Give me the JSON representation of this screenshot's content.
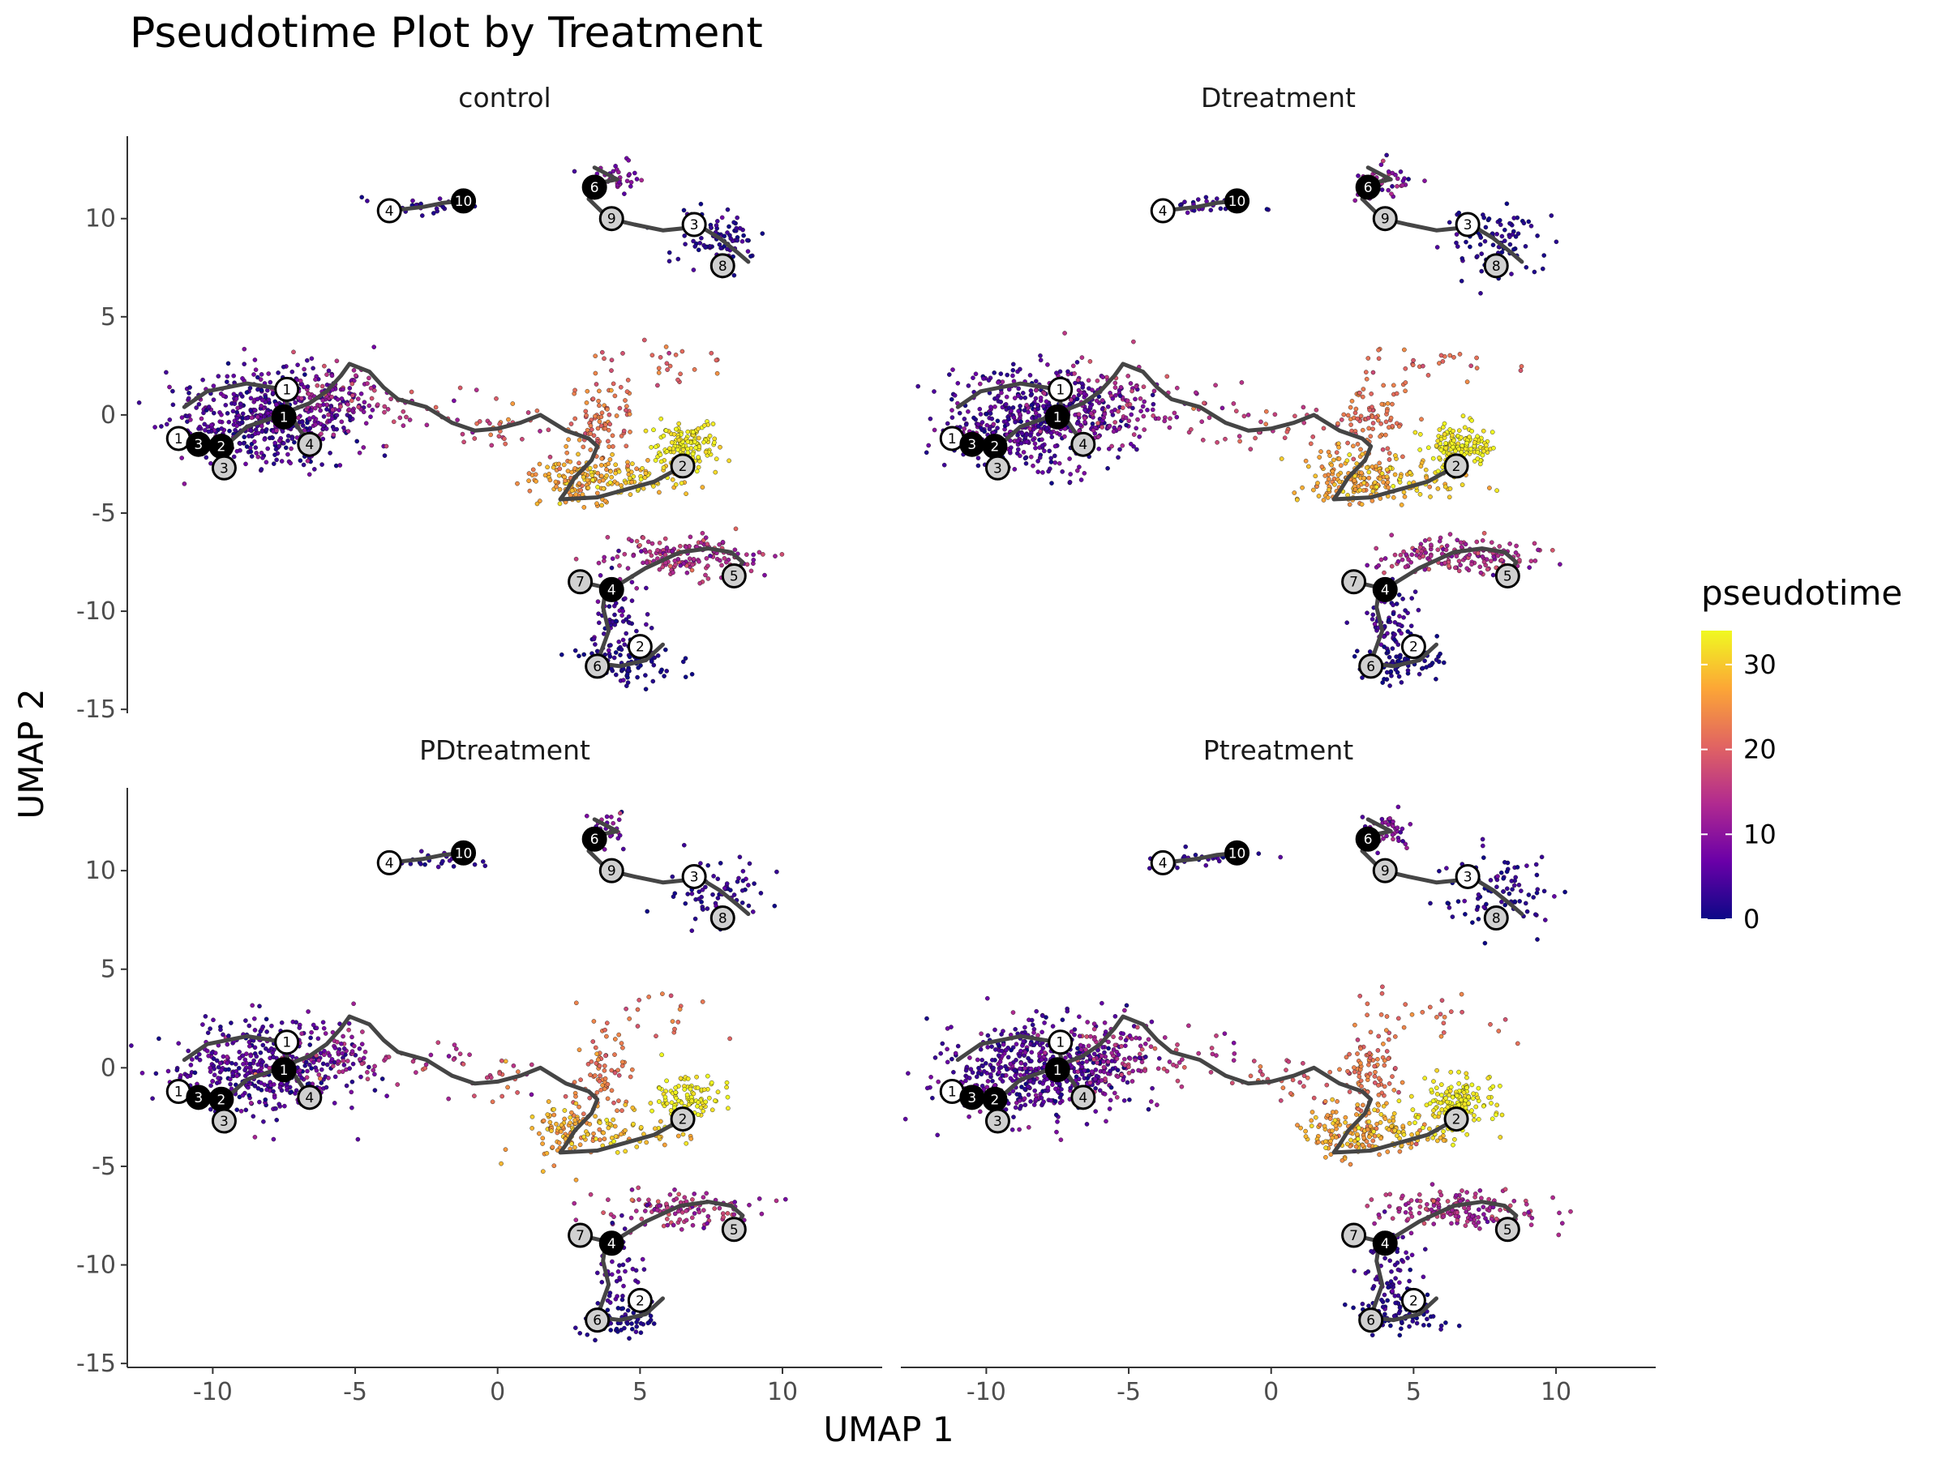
{
  "chart_data": {
    "type": "scatter",
    "title": "Pseudotime Plot by Treatment",
    "xlabel": "UMAP 1",
    "ylabel": "UMAP 2",
    "xlim": [
      -13,
      13.5
    ],
    "ylim": [
      -15.2,
      14.2
    ],
    "x_ticks": [
      -10,
      -5,
      0,
      5,
      10
    ],
    "x_tick_labels": [
      "-10",
      "-5",
      "0",
      "5",
      "10"
    ],
    "y_ticks": [
      -15,
      -10,
      -5,
      0,
      5,
      10
    ],
    "y_tick_labels": [
      "-15",
      "-10",
      "-5",
      "0",
      "5",
      "10"
    ],
    "grid": false,
    "facets": [
      "control",
      "Dtreatment",
      "PDtreatment",
      "Ptreatment"
    ],
    "color_scale": {
      "name": "pseudotime",
      "palette": "plasma",
      "limits": [
        0,
        34
      ],
      "breaks": [
        0,
        10,
        20,
        30
      ],
      "break_labels": [
        "0",
        "10",
        "20",
        "30"
      ],
      "colors": [
        "#0d0887",
        "#6a00a8",
        "#b12a90",
        "#e16462",
        "#fca636",
        "#f0f921"
      ]
    },
    "legend_placement": "right",
    "trajectory": [
      [
        [
          -11,
          -1.2
        ],
        [
          -10.2,
          -1.4
        ],
        [
          -9.5,
          -1.5
        ],
        [
          -8.8,
          -0.6
        ],
        [
          -8.0,
          -0.2
        ],
        [
          -7.3,
          0.2
        ],
        [
          -6.6,
          0.6
        ],
        [
          -6.0,
          1.2
        ],
        [
          -5.5,
          2.0
        ],
        [
          -5.2,
          2.6
        ],
        [
          -4.5,
          2.2
        ],
        [
          -4.0,
          1.4
        ],
        [
          -3.5,
          0.8
        ],
        [
          -2.5,
          0.4
        ],
        [
          -1.6,
          -0.4
        ],
        [
          -0.8,
          -0.8
        ],
        [
          0,
          -0.7
        ],
        [
          0.8,
          -0.4
        ],
        [
          1.5,
          0.0
        ],
        [
          2.4,
          -0.8
        ],
        [
          3.2,
          -1.2
        ],
        [
          3.5,
          -1.6
        ],
        [
          3.3,
          -2.3
        ],
        [
          2.7,
          -3.2
        ],
        [
          2.4,
          -3.9
        ],
        [
          2.2,
          -4.3
        ],
        [
          3.5,
          -4.2
        ],
        [
          4.5,
          -3.8
        ],
        [
          5.5,
          -3.4
        ],
        [
          6.5,
          -2.6
        ]
      ],
      [
        [
          -7.3,
          0.0
        ],
        [
          -7.5,
          1.3
        ],
        [
          -8.8,
          1.6
        ],
        [
          -10.2,
          1.2
        ],
        [
          -11.0,
          0.4
        ]
      ],
      [
        [
          -7.3,
          0.0
        ],
        [
          -6.6,
          -1.5
        ]
      ],
      [
        [
          -3.8,
          10.4
        ],
        [
          -2.6,
          10.6
        ],
        [
          -1.9,
          10.8
        ],
        [
          -1.2,
          10.9
        ]
      ],
      [
        [
          3.2,
          11.0
        ],
        [
          3.9,
          10.0
        ],
        [
          4.8,
          9.7
        ],
        [
          5.8,
          9.4
        ],
        [
          6.5,
          9.5
        ],
        [
          7.0,
          9.7
        ],
        [
          7.8,
          9.0
        ],
        [
          8.4,
          8.3
        ],
        [
          8.8,
          7.8
        ]
      ],
      [
        [
          3.2,
          11.0
        ],
        [
          3.5,
          11.8
        ],
        [
          4.2,
          12.0
        ],
        [
          3.4,
          12.6
        ]
      ],
      [
        [
          2.9,
          -8.5
        ],
        [
          3.8,
          -8.8
        ],
        [
          4.3,
          -8.6
        ],
        [
          5.2,
          -7.8
        ],
        [
          6.4,
          -7.0
        ],
        [
          7.4,
          -6.8
        ],
        [
          8.2,
          -7.0
        ],
        [
          8.6,
          -7.5
        ],
        [
          8.3,
          -8.2
        ]
      ],
      [
        [
          3.8,
          -8.8
        ],
        [
          3.7,
          -9.8
        ],
        [
          3.9,
          -11.0
        ],
        [
          3.6,
          -12.2
        ],
        [
          3.2,
          -12.6
        ],
        [
          4.3,
          -12.8
        ],
        [
          5.2,
          -12.5
        ],
        [
          5.8,
          -11.7
        ]
      ]
    ],
    "milestones": [
      {
        "x": -11.2,
        "y": -1.2,
        "label": "1",
        "kind": "start"
      },
      {
        "x": -7.4,
        "y": 1.3,
        "label": "1",
        "kind": "start"
      },
      {
        "x": -7.5,
        "y": -0.1,
        "label": "1",
        "kind": "branch"
      },
      {
        "x": -10.5,
        "y": -1.5,
        "label": "3",
        "kind": "branch"
      },
      {
        "x": -9.7,
        "y": -1.6,
        "label": "2",
        "kind": "branch"
      },
      {
        "x": -9.6,
        "y": -2.7,
        "label": "3",
        "kind": "end"
      },
      {
        "x": -6.6,
        "y": -1.5,
        "label": "4",
        "kind": "end"
      },
      {
        "x": 6.5,
        "y": -2.6,
        "label": "2",
        "kind": "end"
      },
      {
        "x": -3.8,
        "y": 10.4,
        "label": "4",
        "kind": "start"
      },
      {
        "x": -1.2,
        "y": 10.9,
        "label": "10",
        "kind": "branch"
      },
      {
        "x": 3.4,
        "y": 11.6,
        "label": "6",
        "kind": "branch"
      },
      {
        "x": 4.0,
        "y": 10.0,
        "label": "9",
        "kind": "end"
      },
      {
        "x": 6.9,
        "y": 9.7,
        "label": "3",
        "kind": "start"
      },
      {
        "x": 7.9,
        "y": 7.6,
        "label": "8",
        "kind": "end"
      },
      {
        "x": 2.9,
        "y": -8.5,
        "label": "7",
        "kind": "end"
      },
      {
        "x": 4.0,
        "y": -8.9,
        "label": "4",
        "kind": "branch"
      },
      {
        "x": 8.3,
        "y": -8.2,
        "label": "5",
        "kind": "end"
      },
      {
        "x": 5.0,
        "y": -11.8,
        "label": "2",
        "kind": "start"
      },
      {
        "x": 3.5,
        "y": -12.8,
        "label": "6",
        "kind": "end"
      }
    ]
  }
}
